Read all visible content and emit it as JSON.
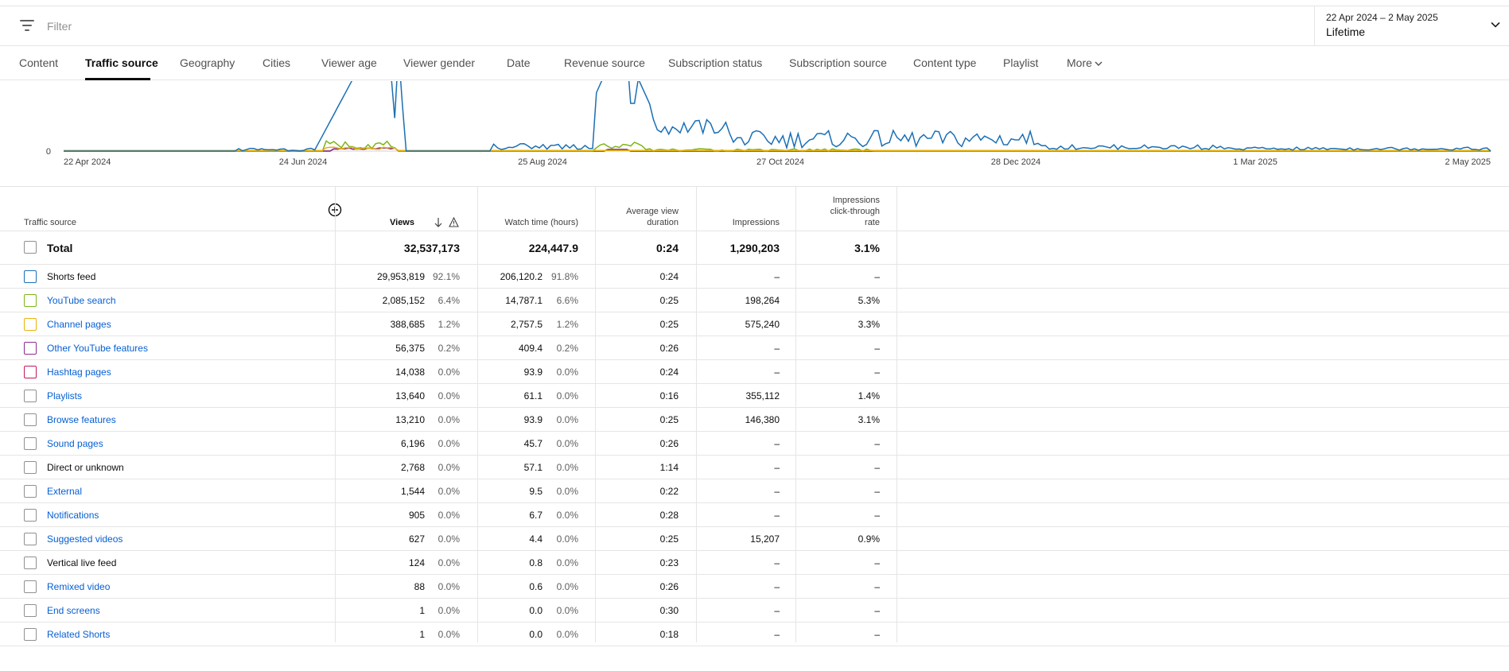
{
  "filter": {
    "placeholder": "Filter",
    "icon": "filter-icon"
  },
  "date_selector": {
    "range": "22 Apr 2024 – 2 May 2025",
    "period": "Lifetime",
    "icon": "chevron-down-icon"
  },
  "tabs": [
    {
      "label": "Content"
    },
    {
      "label": "Traffic source",
      "active": true
    },
    {
      "label": "Geography"
    },
    {
      "label": "Cities"
    },
    {
      "label": "Viewer age"
    },
    {
      "label": "Viewer gender"
    },
    {
      "label": "Date"
    },
    {
      "label": "Revenue source"
    },
    {
      "label": "Subscription status"
    },
    {
      "label": "Subscription source"
    },
    {
      "label": "Content type"
    },
    {
      "label": "Playlist"
    },
    {
      "label": "More"
    }
  ],
  "chart_data": {
    "type": "line",
    "y_tick_labels": [
      "0"
    ],
    "x_tick_labels": [
      "22 Apr 2024",
      "24 Jun 2024",
      "25 Aug 2024",
      "27 Oct 2024",
      "28 Dec 2024",
      "1 Mar 2025",
      "2 May 2025"
    ],
    "series_colors": {
      "Shorts feed": "#1a6fb5",
      "YouTube search": "#7cb518",
      "Channel pages": "#e8b40c",
      "Other YouTube features": "#8e2c8e",
      "Hashtag pages": "#c2185b"
    }
  },
  "table": {
    "headers": {
      "source": "Traffic source",
      "views": "Views",
      "watch": "Watch time (hours)",
      "avd_1": "Average view",
      "avd_2": "duration",
      "impressions": "Impressions",
      "ctr_1": "Impressions",
      "ctr_2": "click-through",
      "ctr_3": "rate"
    },
    "total": {
      "label": "Total",
      "views": "32,537,173",
      "watch": "224,447.9",
      "avd": "0:24",
      "impressions": "1,290,203",
      "ctr": "3.1%"
    },
    "rows": [
      {
        "source": "Shorts feed",
        "link": false,
        "color": "#1a6fb5",
        "views": "29,953,819",
        "views_pct": "92.1%",
        "watch": "206,120.2",
        "watch_pct": "91.8%",
        "avd": "0:24",
        "impressions": "–",
        "ctr": "–"
      },
      {
        "source": "YouTube search",
        "link": true,
        "color": "#7cb518",
        "views": "2,085,152",
        "views_pct": "6.4%",
        "watch": "14,787.1",
        "watch_pct": "6.6%",
        "avd": "0:25",
        "impressions": "198,264",
        "ctr": "5.3%"
      },
      {
        "source": "Channel pages",
        "link": true,
        "color": "#e8b40c",
        "views": "388,685",
        "views_pct": "1.2%",
        "watch": "2,757.5",
        "watch_pct": "1.2%",
        "avd": "0:25",
        "impressions": "575,240",
        "ctr": "3.3%"
      },
      {
        "source": "Other YouTube features",
        "link": true,
        "color": "#8e2c8e",
        "views": "56,375",
        "views_pct": "0.2%",
        "watch": "409.4",
        "watch_pct": "0.2%",
        "avd": "0:26",
        "impressions": "–",
        "ctr": "–"
      },
      {
        "source": "Hashtag pages",
        "link": true,
        "color": "#c2185b",
        "views": "14,038",
        "views_pct": "0.0%",
        "watch": "93.9",
        "watch_pct": "0.0%",
        "avd": "0:24",
        "impressions": "–",
        "ctr": "–"
      },
      {
        "source": "Playlists",
        "link": true,
        "color": "#909090",
        "views": "13,640",
        "views_pct": "0.0%",
        "watch": "61.1",
        "watch_pct": "0.0%",
        "avd": "0:16",
        "impressions": "355,112",
        "ctr": "1.4%"
      },
      {
        "source": "Browse features",
        "link": true,
        "color": "#909090",
        "views": "13,210",
        "views_pct": "0.0%",
        "watch": "93.9",
        "watch_pct": "0.0%",
        "avd": "0:25",
        "impressions": "146,380",
        "ctr": "3.1%"
      },
      {
        "source": "Sound pages",
        "link": true,
        "color": "#909090",
        "views": "6,196",
        "views_pct": "0.0%",
        "watch": "45.7",
        "watch_pct": "0.0%",
        "avd": "0:26",
        "impressions": "–",
        "ctr": "–"
      },
      {
        "source": "Direct or unknown",
        "link": false,
        "color": "#909090",
        "views": "2,768",
        "views_pct": "0.0%",
        "watch": "57.1",
        "watch_pct": "0.0%",
        "avd": "1:14",
        "impressions": "–",
        "ctr": "–"
      },
      {
        "source": "External",
        "link": true,
        "color": "#909090",
        "views": "1,544",
        "views_pct": "0.0%",
        "watch": "9.5",
        "watch_pct": "0.0%",
        "avd": "0:22",
        "impressions": "–",
        "ctr": "–"
      },
      {
        "source": "Notifications",
        "link": true,
        "color": "#909090",
        "views": "905",
        "views_pct": "0.0%",
        "watch": "6.7",
        "watch_pct": "0.0%",
        "avd": "0:28",
        "impressions": "–",
        "ctr": "–"
      },
      {
        "source": "Suggested videos",
        "link": true,
        "color": "#909090",
        "views": "627",
        "views_pct": "0.0%",
        "watch": "4.4",
        "watch_pct": "0.0%",
        "avd": "0:25",
        "impressions": "15,207",
        "ctr": "0.9%"
      },
      {
        "source": "Vertical live feed",
        "link": false,
        "color": "#909090",
        "views": "124",
        "views_pct": "0.0%",
        "watch": "0.8",
        "watch_pct": "0.0%",
        "avd": "0:23",
        "impressions": "–",
        "ctr": "–"
      },
      {
        "source": "Remixed video",
        "link": true,
        "color": "#909090",
        "views": "88",
        "views_pct": "0.0%",
        "watch": "0.6",
        "watch_pct": "0.0%",
        "avd": "0:26",
        "impressions": "–",
        "ctr": "–"
      },
      {
        "source": "End screens",
        "link": true,
        "color": "#909090",
        "views": "1",
        "views_pct": "0.0%",
        "watch": "0.0",
        "watch_pct": "0.0%",
        "avd": "0:30",
        "impressions": "–",
        "ctr": "–"
      },
      {
        "source": "Related Shorts",
        "link": true,
        "color": "#909090",
        "views": "1",
        "views_pct": "0.0%",
        "watch": "0.0",
        "watch_pct": "0.0%",
        "avd": "0:18",
        "impressions": "–",
        "ctr": "–"
      }
    ]
  }
}
